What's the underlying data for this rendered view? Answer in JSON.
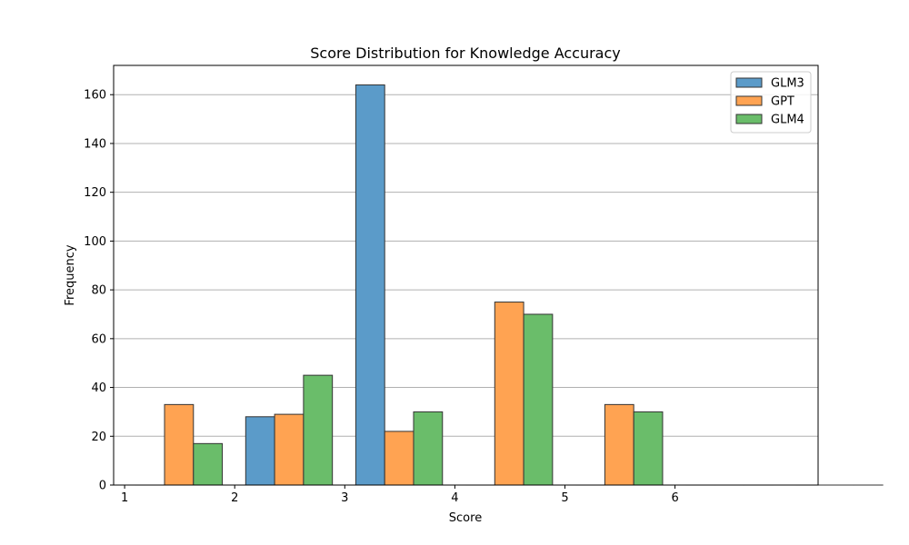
{
  "chart_data": {
    "type": "bar",
    "title": "Score Distribution for Knowledge Accuracy",
    "xlabel": "Score",
    "ylabel": "Frequency",
    "xlim": [
      0.9,
      7.3
    ],
    "ylim": [
      0,
      172
    ],
    "x_ticks": [
      1,
      2,
      3,
      4,
      5,
      6
    ],
    "y_ticks": [
      0,
      20,
      40,
      60,
      80,
      100,
      120,
      140,
      160
    ],
    "bins": [
      1.0,
      2.0,
      3.0,
      4.0,
      5.0,
      6.0,
      7.0
    ],
    "grid": "y",
    "legend_position": "top-right",
    "series": [
      {
        "name": "GLM3",
        "color": "#5b9bc9",
        "values": [
          0,
          28,
          164,
          0,
          0,
          0,
          0
        ]
      },
      {
        "name": "GPT",
        "color": "#ffa352",
        "values": [
          33,
          29,
          22,
          75,
          33,
          0,
          0
        ]
      },
      {
        "name": "GLM4",
        "color": "#6abd6a",
        "values": [
          17,
          45,
          30,
          70,
          30,
          0,
          0
        ]
      }
    ]
  }
}
